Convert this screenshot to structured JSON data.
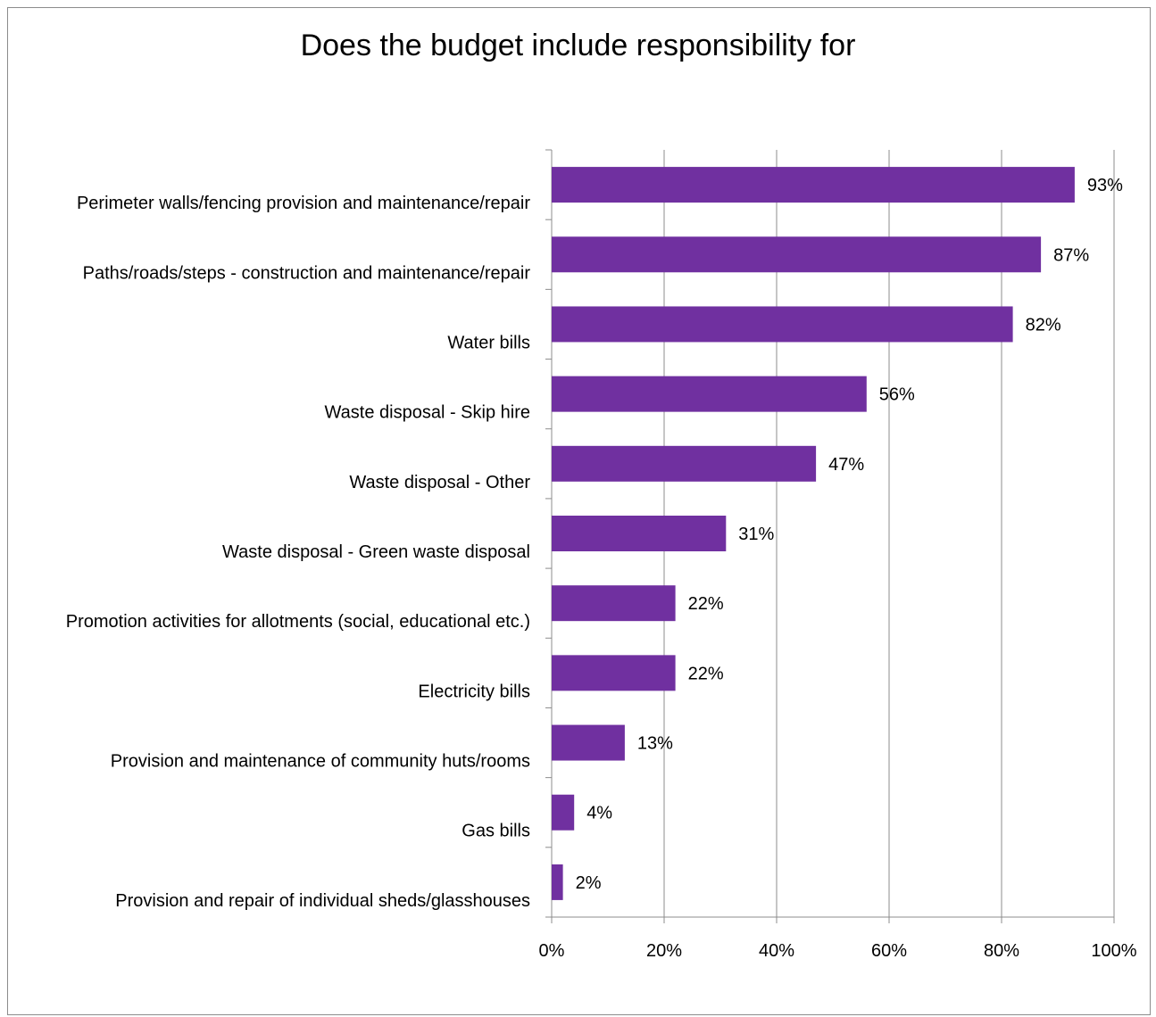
{
  "chart_data": {
    "type": "bar",
    "orientation": "horizontal",
    "title": "Does the budget include responsibility for",
    "categories": [
      "Perimeter walls/fencing provision and maintenance/repair",
      "Paths/roads/steps - construction and maintenance/repair",
      "Water bills",
      "Waste disposal - Skip hire",
      "Waste disposal - Other",
      "Waste disposal - Green waste disposal",
      "Promotion activities for allotments (social, educational etc.)",
      "Electricity bills",
      "Provision and maintenance of community huts/rooms",
      "Gas bills",
      "Provision and repair of individual sheds/glasshouses"
    ],
    "values": [
      93,
      87,
      82,
      56,
      47,
      31,
      22,
      22,
      13,
      4,
      2
    ],
    "data_labels": [
      "93%",
      "87%",
      "82%",
      "56%",
      "47%",
      "31%",
      "22%",
      "22%",
      "13%",
      "4%",
      "2%"
    ],
    "x_ticks": [
      "0%",
      "20%",
      "40%",
      "60%",
      "80%",
      "100%"
    ],
    "xlim": [
      0,
      100
    ],
    "grid": true,
    "legend": "none",
    "bar_color": "#7030a0"
  }
}
